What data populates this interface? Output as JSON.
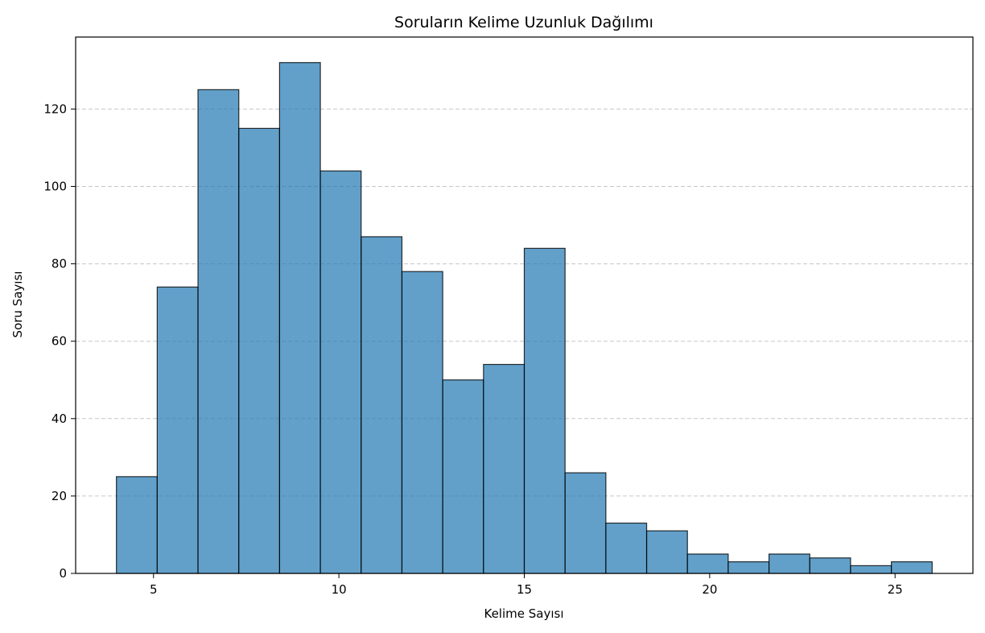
{
  "chart_data": {
    "type": "bar",
    "subtype": "histogram",
    "title": "Soruların Kelime Uzunluk Dağılımı",
    "xlabel": "Kelime Sayısı",
    "ylabel": "Soru Sayısı",
    "xlim": [
      2.9,
      27.1
    ],
    "ylim": [
      0,
      138.6
    ],
    "bin_edges": [
      4,
      5.1,
      6.2,
      7.3,
      8.4,
      9.5,
      10.6,
      11.7,
      12.8,
      13.9,
      15,
      16.1,
      17.2,
      18.3,
      19.4,
      20.5,
      21.6,
      22.7,
      23.8,
      24.9,
      26
    ],
    "values": [
      25,
      74,
      125,
      115,
      132,
      104,
      87,
      78,
      50,
      54,
      84,
      26,
      13,
      11,
      5,
      3,
      5,
      4,
      2,
      3
    ],
    "xticks": [
      5,
      10,
      15,
      20,
      25
    ],
    "yticks": [
      0,
      20,
      40,
      60,
      80,
      100,
      120
    ],
    "grid": {
      "axis": "y",
      "style": "dashed"
    },
    "legend": null,
    "colors": {
      "bar_fill": "#1f77b4",
      "bar_edge": "#000000",
      "bar_alpha": 0.7,
      "grid": "#b0b0b0"
    }
  }
}
